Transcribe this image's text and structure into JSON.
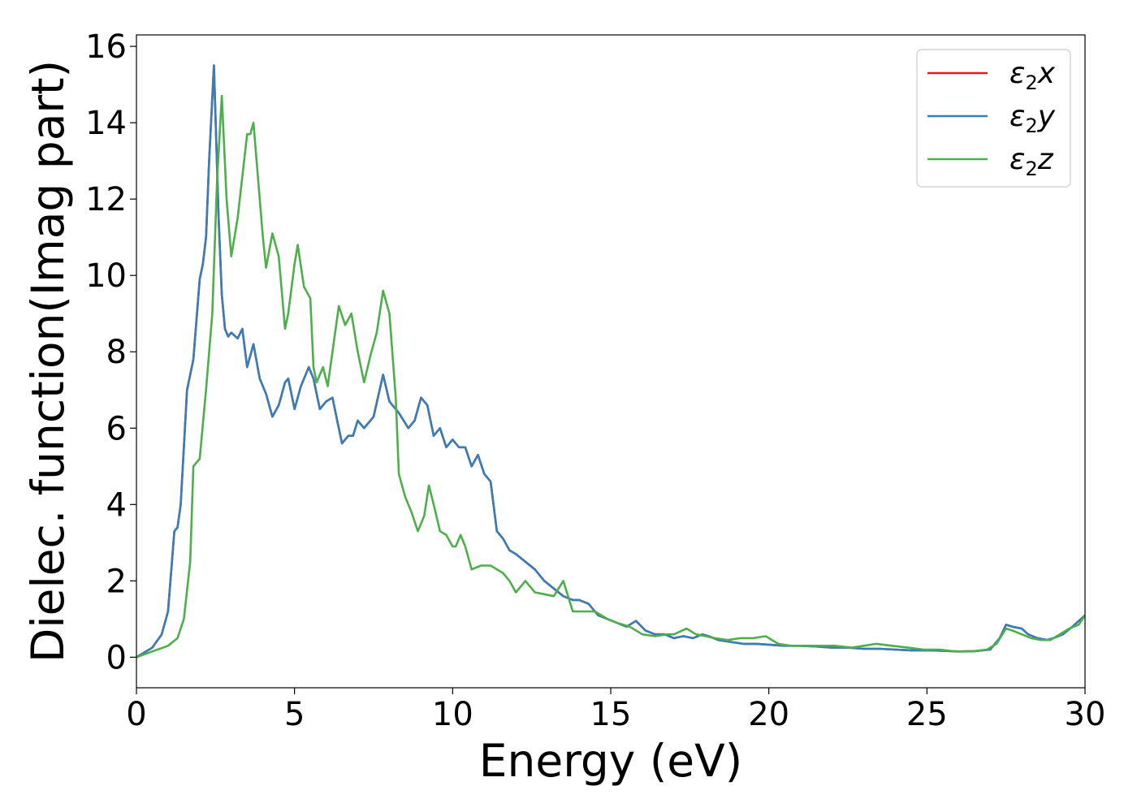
{
  "chart_data": {
    "type": "line",
    "xlabel": "Energy (eV)",
    "ylabel": "Dielec. function(Imag part)",
    "xlim": [
      0,
      30
    ],
    "ylim": [
      -0.8,
      16.3
    ],
    "xticks": [
      0,
      5,
      10,
      15,
      20,
      25,
      30
    ],
    "yticks": [
      0,
      2,
      4,
      6,
      8,
      10,
      12,
      14,
      16
    ],
    "grid": false,
    "legend_position": "top-right",
    "series": [
      {
        "name": "ε2x",
        "legend": {
          "base": "ε",
          "sub": "2",
          "suffix": "x"
        },
        "color": "#e41a1c",
        "x": [
          0,
          0.5,
          0.8,
          1.0,
          1.2,
          1.3,
          1.4,
          1.6,
          1.8,
          2.0,
          2.1,
          2.2,
          2.3,
          2.45,
          2.6,
          2.7,
          2.8,
          2.9,
          3.0,
          3.2,
          3.35,
          3.5,
          3.7,
          3.9,
          4.1,
          4.3,
          4.5,
          4.7,
          4.8,
          5.0,
          5.2,
          5.45,
          5.6,
          5.8,
          6.0,
          6.2,
          6.35,
          6.5,
          6.7,
          6.85,
          7.0,
          7.2,
          7.5,
          7.8,
          8.0,
          8.3,
          8.6,
          8.8,
          9.0,
          9.2,
          9.4,
          9.6,
          9.8,
          10.0,
          10.2,
          10.4,
          10.6,
          10.8,
          11.0,
          11.2,
          11.4,
          11.6,
          11.8,
          12.0,
          12.3,
          12.6,
          12.9,
          13.2,
          13.5,
          13.8,
          14.0,
          14.3,
          14.6,
          14.9,
          15.2,
          15.5,
          15.8,
          16.1,
          16.4,
          16.7,
          17.0,
          17.3,
          17.6,
          17.9,
          18.1,
          18.4,
          18.8,
          19.2,
          19.6,
          20.0,
          20.5,
          21.0,
          21.5,
          22.0,
          22.5,
          23.0,
          23.5,
          24.0,
          24.5,
          25.0,
          25.5,
          26.0,
          26.5,
          27.0,
          27.3,
          27.5,
          27.7,
          28.0,
          28.2,
          28.5,
          28.8,
          29.0,
          29.3,
          29.6,
          30.0
        ],
        "y": [
          0,
          0.25,
          0.6,
          1.2,
          3.3,
          3.4,
          4.0,
          7.0,
          7.8,
          9.9,
          10.3,
          11.0,
          13.0,
          15.5,
          11.5,
          9.5,
          8.6,
          8.4,
          8.5,
          8.35,
          8.6,
          7.6,
          8.2,
          7.3,
          6.9,
          6.3,
          6.6,
          7.2,
          7.3,
          6.5,
          7.1,
          7.6,
          7.3,
          6.5,
          6.7,
          6.8,
          6.2,
          5.6,
          5.8,
          5.8,
          6.2,
          6.0,
          6.3,
          7.4,
          6.7,
          6.4,
          6.0,
          6.2,
          6.8,
          6.6,
          5.8,
          6.0,
          5.5,
          5.7,
          5.5,
          5.5,
          5.0,
          5.3,
          4.8,
          4.6,
          3.3,
          3.1,
          2.8,
          2.7,
          2.5,
          2.3,
          2.0,
          1.8,
          1.6,
          1.5,
          1.5,
          1.4,
          1.1,
          1.0,
          0.9,
          0.8,
          0.95,
          0.7,
          0.6,
          0.6,
          0.5,
          0.55,
          0.5,
          0.6,
          0.55,
          0.45,
          0.4,
          0.35,
          0.35,
          0.33,
          0.3,
          0.3,
          0.28,
          0.25,
          0.25,
          0.22,
          0.22,
          0.2,
          0.18,
          0.18,
          0.17,
          0.15,
          0.16,
          0.2,
          0.5,
          0.85,
          0.8,
          0.75,
          0.6,
          0.5,
          0.45,
          0.5,
          0.6,
          0.8,
          1.1
        ]
      },
      {
        "name": "ε2y",
        "legend": {
          "base": "ε",
          "sub": "2",
          "suffix": "y"
        },
        "color": "#377eb8",
        "x": [
          0,
          0.5,
          0.8,
          1.0,
          1.2,
          1.3,
          1.4,
          1.6,
          1.8,
          2.0,
          2.1,
          2.2,
          2.3,
          2.45,
          2.6,
          2.7,
          2.8,
          2.9,
          3.0,
          3.2,
          3.35,
          3.5,
          3.7,
          3.9,
          4.1,
          4.3,
          4.5,
          4.7,
          4.8,
          5.0,
          5.2,
          5.45,
          5.6,
          5.8,
          6.0,
          6.2,
          6.35,
          6.5,
          6.7,
          6.85,
          7.0,
          7.2,
          7.5,
          7.8,
          8.0,
          8.3,
          8.6,
          8.8,
          9.0,
          9.2,
          9.4,
          9.6,
          9.8,
          10.0,
          10.2,
          10.4,
          10.6,
          10.8,
          11.0,
          11.2,
          11.4,
          11.6,
          11.8,
          12.0,
          12.3,
          12.6,
          12.9,
          13.2,
          13.5,
          13.8,
          14.0,
          14.3,
          14.6,
          14.9,
          15.2,
          15.5,
          15.8,
          16.1,
          16.4,
          16.7,
          17.0,
          17.3,
          17.6,
          17.9,
          18.1,
          18.4,
          18.8,
          19.2,
          19.6,
          20.0,
          20.5,
          21.0,
          21.5,
          22.0,
          22.5,
          23.0,
          23.5,
          24.0,
          24.5,
          25.0,
          25.5,
          26.0,
          26.5,
          27.0,
          27.3,
          27.5,
          27.7,
          28.0,
          28.2,
          28.5,
          28.8,
          29.0,
          29.3,
          29.6,
          30.0
        ],
        "y": [
          0,
          0.25,
          0.6,
          1.2,
          3.3,
          3.4,
          4.0,
          7.0,
          7.8,
          9.9,
          10.3,
          11.0,
          13.0,
          15.5,
          11.5,
          9.5,
          8.6,
          8.4,
          8.5,
          8.35,
          8.6,
          7.6,
          8.2,
          7.3,
          6.9,
          6.3,
          6.6,
          7.2,
          7.3,
          6.5,
          7.1,
          7.6,
          7.3,
          6.5,
          6.7,
          6.8,
          6.2,
          5.6,
          5.8,
          5.8,
          6.2,
          6.0,
          6.3,
          7.4,
          6.7,
          6.4,
          6.0,
          6.2,
          6.8,
          6.6,
          5.8,
          6.0,
          5.5,
          5.7,
          5.5,
          5.5,
          5.0,
          5.3,
          4.8,
          4.6,
          3.3,
          3.1,
          2.8,
          2.7,
          2.5,
          2.3,
          2.0,
          1.8,
          1.6,
          1.5,
          1.5,
          1.4,
          1.1,
          1.0,
          0.9,
          0.8,
          0.95,
          0.7,
          0.6,
          0.6,
          0.5,
          0.55,
          0.5,
          0.6,
          0.55,
          0.45,
          0.4,
          0.35,
          0.35,
          0.33,
          0.3,
          0.3,
          0.28,
          0.25,
          0.25,
          0.22,
          0.22,
          0.2,
          0.18,
          0.18,
          0.17,
          0.15,
          0.16,
          0.2,
          0.5,
          0.85,
          0.8,
          0.75,
          0.6,
          0.5,
          0.45,
          0.5,
          0.6,
          0.8,
          1.1
        ]
      },
      {
        "name": "ε2z",
        "legend": {
          "base": "ε",
          "sub": "2",
          "suffix": "z"
        },
        "color": "#4daf4a",
        "x": [
          0,
          0.5,
          1.0,
          1.3,
          1.5,
          1.7,
          1.8,
          2.0,
          2.2,
          2.4,
          2.55,
          2.7,
          2.85,
          3.0,
          3.2,
          3.5,
          3.6,
          3.7,
          3.85,
          4.0,
          4.1,
          4.3,
          4.5,
          4.7,
          4.8,
          5.0,
          5.1,
          5.3,
          5.5,
          5.6,
          5.7,
          5.9,
          6.05,
          6.2,
          6.4,
          6.6,
          6.8,
          7.0,
          7.2,
          7.4,
          7.6,
          7.8,
          8.0,
          8.2,
          8.3,
          8.5,
          8.7,
          8.9,
          9.1,
          9.25,
          9.4,
          9.6,
          9.8,
          10.0,
          10.1,
          10.25,
          10.4,
          10.6,
          10.9,
          11.2,
          11.4,
          11.6,
          11.8,
          12.0,
          12.3,
          12.6,
          12.9,
          13.2,
          13.5,
          13.8,
          14.1,
          14.5,
          14.9,
          15.2,
          15.6,
          16.0,
          16.4,
          16.8,
          17.0,
          17.4,
          17.7,
          18.0,
          18.3,
          18.7,
          19.1,
          19.5,
          19.9,
          20.3,
          20.7,
          21.1,
          21.6,
          22.1,
          22.6,
          23.0,
          23.4,
          23.9,
          24.4,
          24.9,
          25.4,
          25.9,
          26.4,
          26.9,
          27.2,
          27.5,
          27.7,
          28.0,
          28.3,
          28.6,
          28.9,
          29.2,
          29.5,
          29.8,
          30.0
        ],
        "y": [
          0,
          0.15,
          0.3,
          0.5,
          1.0,
          2.5,
          5.0,
          5.2,
          7.0,
          9.0,
          12.5,
          14.7,
          12.0,
          10.5,
          11.5,
          13.7,
          13.7,
          14.0,
          12.5,
          11.0,
          10.2,
          11.1,
          10.5,
          8.6,
          9.0,
          10.3,
          10.8,
          9.7,
          9.4,
          7.6,
          7.2,
          7.6,
          7.1,
          8.0,
          9.2,
          8.7,
          9.0,
          8.0,
          7.2,
          7.9,
          8.5,
          9.6,
          9.0,
          6.8,
          4.8,
          4.2,
          3.8,
          3.3,
          3.7,
          4.5,
          4.0,
          3.3,
          3.2,
          2.9,
          2.9,
          3.2,
          2.9,
          2.3,
          2.4,
          2.4,
          2.3,
          2.2,
          2.0,
          1.7,
          2.0,
          1.7,
          1.65,
          1.6,
          2.0,
          1.2,
          1.2,
          1.2,
          1.0,
          0.9,
          0.8,
          0.6,
          0.55,
          0.6,
          0.6,
          0.75,
          0.6,
          0.55,
          0.5,
          0.45,
          0.5,
          0.5,
          0.55,
          0.35,
          0.3,
          0.3,
          0.3,
          0.3,
          0.25,
          0.3,
          0.35,
          0.3,
          0.25,
          0.2,
          0.2,
          0.15,
          0.15,
          0.2,
          0.35,
          0.75,
          0.7,
          0.6,
          0.5,
          0.45,
          0.45,
          0.6,
          0.75,
          0.85,
          1.1
        ]
      }
    ]
  }
}
